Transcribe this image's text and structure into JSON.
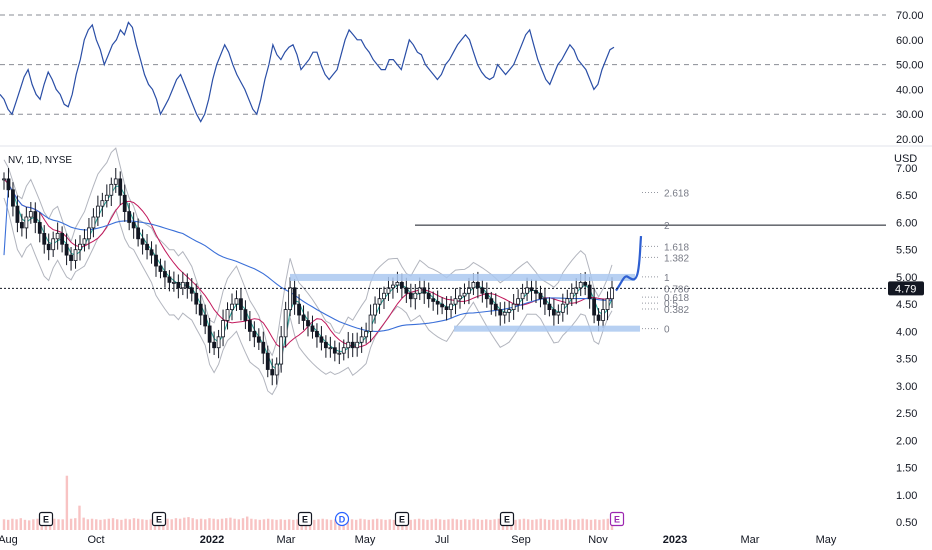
{
  "header": {
    "symbol_text": "NV, 1D, NYSE",
    "currency": "USD"
  },
  "rsi_panel": {
    "ticks": [
      "70.00",
      "60.00",
      "50.00",
      "40.00",
      "30.00",
      "20.00"
    ],
    "tick_values": [
      70,
      60,
      50,
      40,
      30,
      20
    ],
    "levels": [
      70,
      50,
      30
    ]
  },
  "price_panel": {
    "ticks": [
      "7.00",
      "6.50",
      "6.00",
      "5.50",
      "5.00",
      "4.50",
      "4.00",
      "3.50",
      "3.00",
      "2.50",
      "2.00",
      "1.50",
      "1.00",
      "0.50"
    ],
    "tick_values": [
      7.0,
      6.5,
      6.0,
      5.5,
      5.0,
      4.5,
      4.0,
      3.5,
      3.0,
      2.5,
      2.0,
      1.5,
      1.0,
      0.5
    ],
    "last_price": "4.79",
    "last_price_value": 4.79,
    "last_price_color": "#131722"
  },
  "fib_levels": [
    {
      "label": "2.618",
      "price": 6.55
    },
    {
      "label": "2",
      "price": 5.95
    },
    {
      "label": "1.618",
      "price": 5.56
    },
    {
      "label": "1.382",
      "price": 5.36
    },
    {
      "label": "1",
      "price": 5.0
    },
    {
      "label": "0.786",
      "price": 4.79
    },
    {
      "label": "0.618",
      "price": 4.63
    },
    {
      "label": "0.5",
      "price": 4.52
    },
    {
      "label": "0.382",
      "price": 4.41
    },
    {
      "label": "0",
      "price": 4.05
    }
  ],
  "x_axis": [
    "Aug",
    "Oct",
    "2022",
    "Mar",
    "May",
    "Jul",
    "Sep",
    "Nov",
    "2023",
    "Mar",
    "May"
  ],
  "events": [
    {
      "label": "E",
      "type": "earnings",
      "color": "#131722"
    },
    {
      "label": "E",
      "type": "earnings",
      "color": "#131722"
    },
    {
      "label": "E",
      "type": "earnings",
      "color": "#131722"
    },
    {
      "label": "D",
      "type": "dividend",
      "color": "#2962ff"
    },
    {
      "label": "E",
      "type": "earnings",
      "color": "#131722"
    },
    {
      "label": "E",
      "type": "earnings",
      "color": "#131722"
    },
    {
      "label": "E",
      "type": "earnings",
      "color": "#9c27b0"
    }
  ],
  "colors": {
    "rsi_line": "#2a4ea6",
    "ma_long": "#3a6fd8",
    "ma_mid": "#c2185b",
    "ma_short": "#26a69a",
    "bands": "#b2b5be",
    "zone": "#aac8f0",
    "projection": "#2e5fd1",
    "candle": "#131722",
    "volume": "#f8c3c3"
  },
  "chart_data": [
    {
      "type": "line",
      "title": "",
      "ylabel": "",
      "series": [
        {
          "values": [
            38,
            36,
            32,
            30,
            35,
            40,
            45,
            48,
            42,
            38,
            36,
            42,
            47,
            44,
            40,
            38,
            34,
            33,
            38,
            46,
            52,
            60,
            64,
            66,
            60,
            56,
            50,
            54,
            58,
            60,
            64,
            62,
            67,
            65,
            58,
            52,
            46,
            42,
            40,
            36,
            30,
            33,
            36,
            40,
            44,
            46,
            42,
            38,
            34,
            30,
            27,
            30,
            36,
            44,
            50,
            54,
            58,
            55,
            50,
            46,
            43,
            40,
            36,
            32,
            30,
            36,
            44,
            50,
            58,
            54,
            52,
            55,
            57,
            58,
            54,
            48,
            50,
            52,
            55,
            55,
            50,
            46,
            44,
            46,
            48,
            54,
            60,
            64,
            62,
            60,
            60,
            57,
            55,
            52,
            50,
            48,
            48,
            52,
            52,
            50,
            48,
            54,
            60,
            58,
            55,
            54,
            50,
            48,
            46,
            44,
            46,
            50,
            52,
            55,
            58,
            60,
            62,
            60,
            55,
            50,
            47,
            45,
            44,
            45,
            50,
            48,
            46,
            48,
            50,
            54,
            58,
            62,
            64,
            58,
            52,
            48,
            44,
            42,
            46,
            50,
            52,
            55,
            58,
            56,
            52,
            50,
            48,
            44,
            40,
            42,
            48,
            52,
            56,
            57
          ]
        }
      ],
      "ylim": [
        15,
        72
      ]
    },
    {
      "type": "line",
      "title": "",
      "xlabel": "",
      "ylabel": "",
      "series": [
        {
          "values": [
            6.8,
            6.6,
            6.3,
            6.0,
            5.9,
            6.1,
            6.2,
            6.0,
            5.8,
            5.6,
            5.5,
            5.7,
            5.8,
            5.6,
            5.4,
            5.3,
            5.5,
            5.6,
            5.7,
            5.9,
            6.1,
            6.3,
            6.4,
            6.5,
            6.7,
            6.8,
            6.5,
            6.2,
            6.0,
            5.9,
            5.7,
            5.6,
            5.5,
            5.4,
            5.2,
            5.1,
            5.0,
            4.9,
            4.9,
            4.8,
            4.9,
            4.8,
            4.7,
            4.5,
            4.3,
            4.1,
            3.8,
            3.7,
            3.9,
            4.2,
            4.4,
            4.5,
            4.6,
            4.4,
            4.2,
            4.0,
            3.9,
            3.8,
            3.6,
            3.3,
            3.2,
            3.4,
            3.9,
            4.4,
            4.8,
            4.5,
            4.3,
            4.2,
            4.1,
            4.0,
            3.9,
            3.8,
            3.7,
            3.7,
            3.6,
            3.6,
            3.7,
            3.8,
            3.7,
            3.8,
            3.9,
            4.0,
            4.3,
            4.5,
            4.6,
            4.7,
            4.8,
            4.85,
            4.9,
            4.8,
            4.7,
            4.6,
            4.7,
            4.8,
            4.7,
            4.6,
            4.55,
            4.5,
            4.45,
            4.4,
            4.5,
            4.6,
            4.65,
            4.7,
            4.8,
            4.9,
            4.8,
            4.7,
            4.6,
            4.5,
            4.4,
            4.3,
            4.35,
            4.4,
            4.5,
            4.6,
            4.7,
            4.8,
            4.75,
            4.7,
            4.6,
            4.5,
            4.4,
            4.3,
            4.35,
            4.5,
            4.6,
            4.7,
            4.8,
            4.9,
            4.85,
            4.6,
            4.3,
            4.2,
            4.4,
            4.6,
            4.8
          ]
        }
      ],
      "ylim": [
        0.4,
        7.2
      ]
    },
    {
      "type": "bar",
      "title": "",
      "ylabel": "",
      "series": [
        {
          "values": [
            0.05,
            0.04,
            0.06,
            0.05,
            0.07,
            0.04,
            0.03,
            0.05,
            0.06,
            0.05,
            0.04,
            0.05,
            0.06,
            0.05,
            0.05,
            0.85,
            0.06,
            0.07,
            0.3,
            0.08,
            0.05,
            0.06,
            0.05,
            0.04,
            0.05,
            0.06,
            0.07,
            0.05,
            0.04,
            0.06,
            0.05,
            0.07,
            0.06,
            0.05,
            0.04,
            0.05,
            0.07,
            0.06,
            0.05,
            0.06,
            0.05,
            0.07,
            0.06,
            0.08,
            0.09,
            0.07,
            0.05,
            0.06,
            0.05,
            0.07,
            0.06,
            0.05,
            0.06,
            0.07,
            0.08,
            0.06,
            0.05,
            0.07,
            0.1,
            0.06,
            0.05,
            0.04,
            0.05,
            0.06,
            0.05,
            0.04,
            0.05,
            0.04,
            0.05,
            0.04,
            0.05,
            0.06,
            0.04,
            0.05,
            0.04,
            0.05,
            0.06,
            0.05,
            0.04,
            0.05,
            0.06,
            0.05,
            0.04,
            0.05,
            0.04,
            0.06,
            0.05,
            0.04,
            0.05,
            0.06,
            0.05,
            0.04,
            0.05,
            0.04,
            0.05,
            0.06,
            0.05,
            0.04,
            0.05,
            0.06,
            0.05,
            0.04,
            0.05,
            0.06,
            0.05,
            0.04,
            0.05,
            0.06,
            0.05,
            0.04,
            0.05,
            0.04,
            0.06,
            0.05,
            0.04,
            0.05,
            0.04,
            0.05,
            0.06,
            0.05,
            0.04,
            0.05,
            0.04,
            0.05,
            0.06,
            0.05,
            0.04,
            0.05,
            0.06,
            0.05,
            0.04,
            0.05,
            0.04,
            0.05,
            0.06,
            0.05,
            0.04,
            0.05,
            0.06,
            0.05,
            0.04,
            0.05,
            0.04,
            0.05,
            0.06,
            0.05
          ]
        }
      ],
      "ylim": [
        0,
        2.2
      ]
    }
  ]
}
